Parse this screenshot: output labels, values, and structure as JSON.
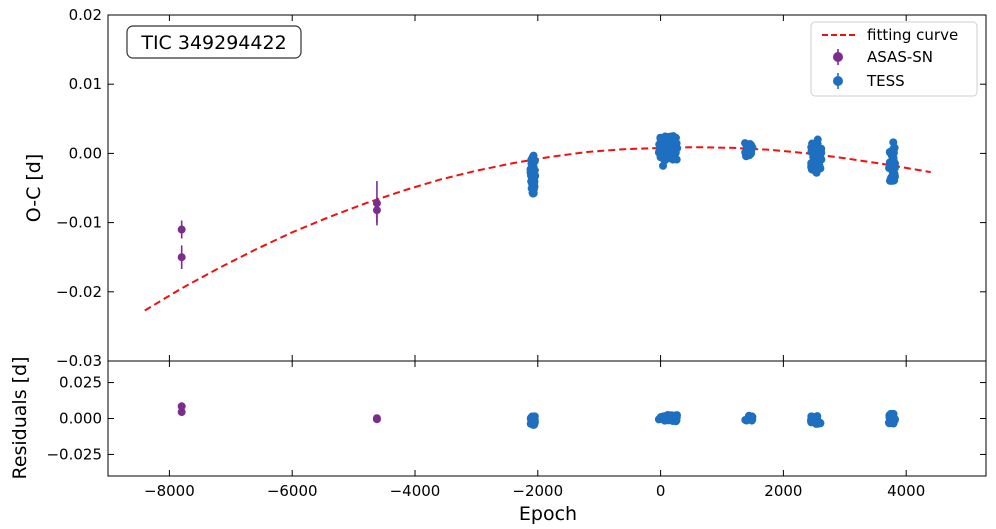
{
  "chart_data": [
    {
      "panel": "top",
      "type": "scatter",
      "annotation": "TIC 349294422",
      "xlabel": "",
      "ylabel": "O-C [d]",
      "xlim": [
        -9000,
        5300
      ],
      "ylim": [
        -0.03,
        0.02
      ],
      "x_ticks": [
        -8000,
        -6000,
        -4000,
        -2000,
        0,
        2000,
        4000
      ],
      "y_ticks": [
        -0.03,
        -0.02,
        -0.01,
        0.0,
        0.01,
        0.02
      ],
      "y_tick_labels": [
        "−0.03",
        "−0.02",
        "−0.01",
        "0.00",
        "0.01",
        "0.02"
      ],
      "legend": {
        "position": "top-right",
        "entries": [
          "fitting curve",
          "ASAS-SN",
          "TESS"
        ]
      },
      "fit_curve": {
        "name": "fitting curve",
        "color": "#ee1111",
        "style": "dashed",
        "x": [
          -8400,
          -7800,
          -7200,
          -6600,
          -6000,
          -5400,
          -4800,
          -4200,
          -3600,
          -3000,
          -2400,
          -1800,
          -1200,
          -600,
          0,
          600,
          1200,
          1800,
          2400,
          3000,
          3600,
          4200,
          4400
        ],
        "y": [
          -0.0227,
          -0.0195,
          -0.0166,
          -0.0139,
          -0.0114,
          -0.0092,
          -0.0072,
          -0.0054,
          -0.0038,
          -0.0025,
          -0.0014,
          -0.0005,
          0.0002,
          0.0006,
          0.0008,
          0.0009,
          0.0008,
          0.0005,
          0.0,
          -0.0007,
          -0.0015,
          -0.0024,
          -0.0027
        ]
      },
      "series": [
        {
          "name": "ASAS-SN",
          "color": "#7b2d8e",
          "x": [
            -7800,
            -7800,
            -4620,
            -4620
          ],
          "y": [
            -0.011,
            -0.015,
            -0.0072,
            -0.0082
          ],
          "yerr": [
            0.0013,
            0.0017,
            0.0032,
            0.0018
          ]
        },
        {
          "name": "TESS",
          "color": "#1f6fc0",
          "clusters": [
            {
              "x_range": [
                -2120,
                -2040
              ],
              "y_range": [
                -0.0058,
                -0.0003
              ],
              "n": 45
            },
            {
              "x_range": [
                -30,
                270
              ],
              "y_range": [
                -0.001,
                0.0025
              ],
              "n": 80
            },
            {
              "x_range": [
                1370,
                1500
              ],
              "y_range": [
                -0.0005,
                0.0015
              ],
              "n": 30
            },
            {
              "x_range": [
                2450,
                2620
              ],
              "y_range": [
                -0.0025,
                0.0015
              ],
              "n": 55
            },
            {
              "x_range": [
                3720,
                3820
              ],
              "y_range": [
                -0.004,
                0.001
              ],
              "n": 40
            }
          ],
          "extra_points": {
            "x": [
              40,
              2560,
              3790,
              -2080,
              2540
            ],
            "y": [
              -0.0018,
              0.002,
              0.0016,
              -0.0058,
              -0.0028
            ]
          }
        }
      ]
    },
    {
      "panel": "bottom",
      "type": "scatter",
      "xlabel": "Epoch",
      "ylabel": "Residuals [d]",
      "xlim": [
        -9000,
        5300
      ],
      "ylim": [
        -0.04,
        0.04
      ],
      "x_ticks": [
        -8000,
        -6000,
        -4000,
        -2000,
        0,
        2000,
        4000
      ],
      "x_tick_labels": [
        "−8000",
        "−6000",
        "−4000",
        "−2000",
        "0",
        "2000",
        "4000"
      ],
      "y_ticks": [
        -0.025,
        0.0,
        0.025
      ],
      "y_tick_labels": [
        "−0.025",
        "0.000",
        "0.025"
      ],
      "series": [
        {
          "name": "ASAS-SN",
          "color": "#7b2d8e",
          "x": [
            -7800,
            -7800,
            -4620,
            -4620
          ],
          "y": [
            0.0085,
            0.0045,
            0.0002,
            -0.0005
          ]
        },
        {
          "name": "TESS",
          "color": "#1f6fc0",
          "clusters": [
            {
              "x_range": [
                -2120,
                -2040
              ],
              "y_range": [
                -0.0045,
                0.0015
              ],
              "n": 30
            },
            {
              "x_range": [
                -30,
                270
              ],
              "y_range": [
                -0.002,
                0.0025
              ],
              "n": 50
            },
            {
              "x_range": [
                1370,
                1500
              ],
              "y_range": [
                -0.0015,
                0.002
              ],
              "n": 20
            },
            {
              "x_range": [
                2450,
                2620
              ],
              "y_range": [
                -0.004,
                0.002
              ],
              "n": 35
            },
            {
              "x_range": [
                3720,
                3820
              ],
              "y_range": [
                -0.0035,
                0.004
              ],
              "n": 30
            }
          ]
        }
      ]
    }
  ]
}
